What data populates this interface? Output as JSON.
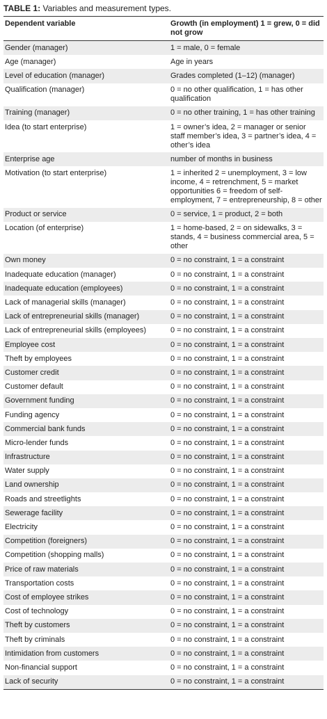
{
  "caption": {
    "label": "TABLE 1:",
    "text": "Variables and measurement types."
  },
  "table": {
    "header": [
      "Dependent variable",
      "Growth (in employment) 1 = grew, 0 = did not grow"
    ],
    "rows": [
      [
        "Gender (manager)",
        "1 = male, 0 = female"
      ],
      [
        "Age (manager)",
        "Age in years"
      ],
      [
        "Level of education (manager)",
        "Grades completed (1–12) (manager)"
      ],
      [
        "Qualification (manager)",
        "0 = no other qualification, 1 = has other qualification"
      ],
      [
        "Training (manager)",
        "0 = no other training, 1 = has other training"
      ],
      [
        "Idea (to start enterprise)",
        "1 = owner’s idea, 2 = manager or senior staff member’s idea, 3 = partner’s idea, 4 = other’s idea"
      ],
      [
        "Enterprise age",
        "number of months in business"
      ],
      [
        "Motivation (to start enterprise)",
        "1 = inherited 2 = unemployment, 3 = low income, 4 = retrenchment, 5 = market opportunities 6 = freedom of self-employment, 7 = entrepreneurship, 8 = other"
      ],
      [
        "Product or service",
        "0 = service, 1 = product, 2 = both"
      ],
      [
        "Location (of enterprise)",
        "1 = home-based, 2 = on sidewalks, 3 = stands, 4 = business commercial area, 5 = other"
      ],
      [
        "Own money",
        "0 = no constraint, 1 = a constraint"
      ],
      [
        "Inadequate education (manager)",
        "0 = no constraint, 1 = a constraint"
      ],
      [
        "Inadequate education (employees)",
        "0 = no constraint, 1 = a constraint"
      ],
      [
        "Lack of managerial skills (manager)",
        "0 = no constraint, 1 = a constraint"
      ],
      [
        "Lack of entrepreneurial skills (manager)",
        "0 = no constraint, 1 = a constraint"
      ],
      [
        "Lack of entrepreneurial skills (employees)",
        "0 = no constraint, 1 = a constraint"
      ],
      [
        "Employee cost",
        "0 = no constraint, 1 = a constraint"
      ],
      [
        "Theft by employees",
        "0 = no constraint, 1 = a constraint"
      ],
      [
        "Customer credit",
        "0 = no constraint, 1 = a constraint"
      ],
      [
        "Customer default",
        "0 = no constraint, 1 = a constraint"
      ],
      [
        "Government funding",
        "0 = no constraint, 1 = a constraint"
      ],
      [
        "Funding agency",
        "0 = no constraint, 1 = a constraint"
      ],
      [
        "Commercial bank funds",
        "0 = no constraint, 1 = a constraint"
      ],
      [
        "Micro-lender funds",
        "0 = no constraint, 1 = a constraint"
      ],
      [
        "Infrastructure",
        "0 = no constraint, 1 = a constraint"
      ],
      [
        "Water supply",
        "0 = no constraint, 1 = a constraint"
      ],
      [
        "Land ownership",
        "0 = no constraint, 1 = a constraint"
      ],
      [
        "Roads and streetlights",
        "0 = no constraint, 1 = a constraint"
      ],
      [
        "Sewerage facility",
        "0 = no constraint, 1 = a constraint"
      ],
      [
        "Electricity",
        "0 = no constraint, 1 = a constraint"
      ],
      [
        "Competition (foreigners)",
        "0 = no constraint, 1 = a constraint"
      ],
      [
        "Competition (shopping malls)",
        "0 = no constraint, 1 = a constraint"
      ],
      [
        "Price of raw materials",
        "0 = no constraint, 1 = a constraint"
      ],
      [
        "Transportation costs",
        "0 = no constraint, 1 = a constraint"
      ],
      [
        "Cost of employee strikes",
        "0 = no constraint, 1 = a constraint"
      ],
      [
        "Cost of technology",
        "0 = no constraint, 1 = a constraint"
      ],
      [
        "Theft by customers",
        "0 = no constraint, 1 = a constraint"
      ],
      [
        "Theft by criminals",
        "0 = no constraint, 1 = a constraint"
      ],
      [
        "Intimidation from customers",
        "0 = no constraint, 1 = a constraint"
      ],
      [
        "Non-financial support",
        "0 = no constraint, 1 = a constraint"
      ],
      [
        "Lack of security",
        "0 = no constraint, 1 = a constraint"
      ]
    ]
  }
}
